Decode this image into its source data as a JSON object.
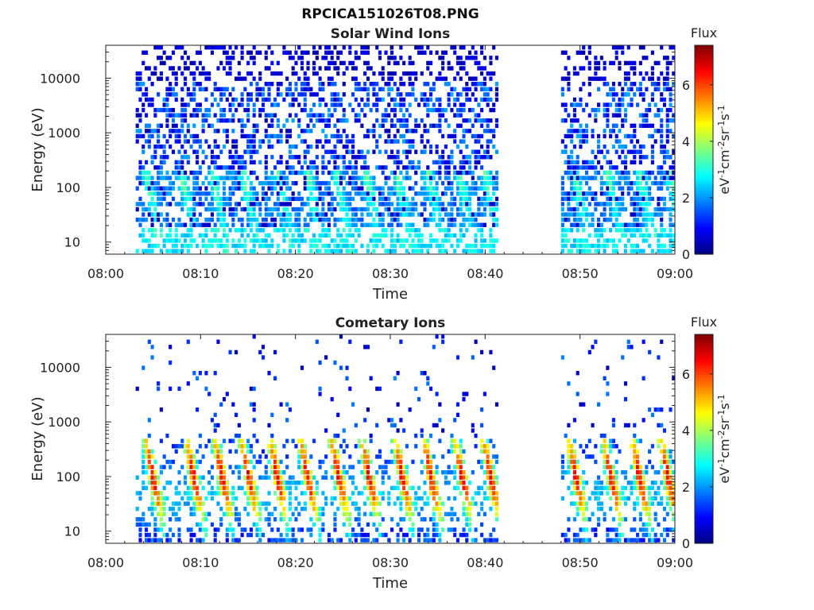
{
  "figure": {
    "title": "RPCICA151026T08.PNG"
  },
  "chart_data": [
    {
      "type": "heatmap",
      "title": "Solar Wind Ions",
      "xlabel": "Time",
      "ylabel": "Energy (eV)",
      "x_ticks": [
        "08:00",
        "08:10",
        "08:20",
        "08:30",
        "08:40",
        "08:50",
        "09:00"
      ],
      "x_range": [
        "08:00",
        "09:00"
      ],
      "y_scale": "log",
      "y_ticks": [
        10,
        100,
        1000,
        10000
      ],
      "y_range": [
        6,
        40000
      ],
      "data_gap": [
        "08:41",
        "08:48"
      ],
      "colorbar": {
        "title": "Flux",
        "label": "eV-1cm-2sr-1s-1",
        "range": [
          0,
          7.4
        ],
        "ticks": [
          0,
          2,
          4,
          6
        ],
        "colormap": "jet"
      },
      "bursts_minutes": [
        3.8,
        7.5,
        10.8,
        14.0,
        17.6,
        20.8,
        23.8,
        27.0,
        30.2,
        33.5,
        36.8,
        39.5,
        49.0,
        52.5,
        55.8,
        59.0
      ],
      "peak_flux": 3.3
    },
    {
      "type": "heatmap",
      "title": "Cometary Ions",
      "xlabel": "Time",
      "ylabel": "Energy (eV)",
      "x_ticks": [
        "08:00",
        "08:10",
        "08:20",
        "08:30",
        "08:40",
        "08:50",
        "09:00"
      ],
      "x_range": [
        "08:00",
        "09:00"
      ],
      "y_scale": "log",
      "y_ticks": [
        10,
        100,
        1000,
        10000
      ],
      "y_range": [
        6,
        40000
      ],
      "data_gap": [
        "08:41",
        "08:48"
      ],
      "colorbar": {
        "title": "Flux",
        "label": "eV-1cm-2sr-1s-1",
        "range": [
          0,
          7.4
        ],
        "ticks": [
          0,
          2,
          4,
          6
        ],
        "colormap": "jet"
      },
      "bursts_minutes": [
        4.2,
        8.5,
        11.5,
        14.3,
        17.3,
        20.5,
        23.8,
        27.0,
        30.5,
        33.5,
        36.8,
        39.8,
        48.8,
        52.5,
        55.5,
        58.5
      ],
      "peak_flux": 6.4
    }
  ]
}
